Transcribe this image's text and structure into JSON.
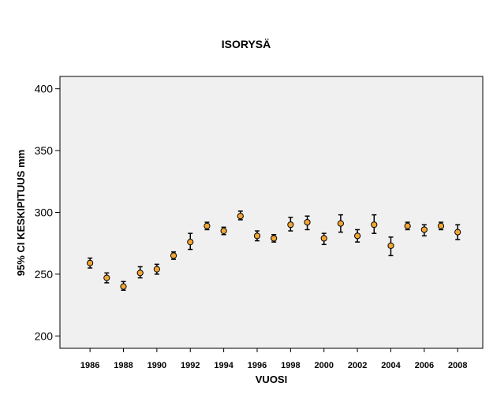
{
  "chart_data": {
    "type": "errorbar",
    "title": "ISORYSÄ",
    "xlabel": "VUOSI",
    "ylabel": "95% CI KESKIPITUUS mm",
    "ylim": [
      190,
      410
    ],
    "xlim": [
      1984.2,
      2009.5
    ],
    "yticks": [
      200,
      250,
      300,
      350,
      400
    ],
    "xticks": [
      1986,
      1988,
      1990,
      1992,
      1994,
      1996,
      1998,
      2000,
      2002,
      2004,
      2006,
      2008
    ],
    "grid": false,
    "colors": {
      "plot_bg": "#f0f0f0",
      "marker_fill": "#f2a633",
      "marker_stroke": "#000000"
    },
    "points": [
      {
        "x": 1986,
        "y": 259,
        "lo": 255,
        "hi": 263
      },
      {
        "x": 1987,
        "y": 247,
        "lo": 243,
        "hi": 251
      },
      {
        "x": 1988,
        "y": 240,
        "lo": 237,
        "hi": 244
      },
      {
        "x": 1989,
        "y": 251,
        "lo": 247,
        "hi": 256
      },
      {
        "x": 1990,
        "y": 254,
        "lo": 250,
        "hi": 258
      },
      {
        "x": 1991,
        "y": 265,
        "lo": 262,
        "hi": 268
      },
      {
        "x": 1992,
        "y": 276,
        "lo": 270,
        "hi": 283
      },
      {
        "x": 1993,
        "y": 289,
        "lo": 286,
        "hi": 292
      },
      {
        "x": 1994,
        "y": 285,
        "lo": 282,
        "hi": 288
      },
      {
        "x": 1995,
        "y": 297,
        "lo": 294,
        "hi": 301
      },
      {
        "x": 1996,
        "y": 281,
        "lo": 277,
        "hi": 285
      },
      {
        "x": 1997,
        "y": 279,
        "lo": 276,
        "hi": 282
      },
      {
        "x": 1998,
        "y": 290,
        "lo": 285,
        "hi": 296
      },
      {
        "x": 1999,
        "y": 292,
        "lo": 286,
        "hi": 297
      },
      {
        "x": 2000,
        "y": 279,
        "lo": 274,
        "hi": 283
      },
      {
        "x": 2001,
        "y": 291,
        "lo": 284,
        "hi": 298
      },
      {
        "x": 2002,
        "y": 281,
        "lo": 276,
        "hi": 286
      },
      {
        "x": 2003,
        "y": 290,
        "lo": 283,
        "hi": 298
      },
      {
        "x": 2004,
        "y": 273,
        "lo": 265,
        "hi": 280
      },
      {
        "x": 2005,
        "y": 289,
        "lo": 286,
        "hi": 292
      },
      {
        "x": 2006,
        "y": 286,
        "lo": 281,
        "hi": 290
      },
      {
        "x": 2007,
        "y": 289,
        "lo": 286,
        "hi": 292
      },
      {
        "x": 2008,
        "y": 284,
        "lo": 278,
        "hi": 290
      }
    ]
  }
}
